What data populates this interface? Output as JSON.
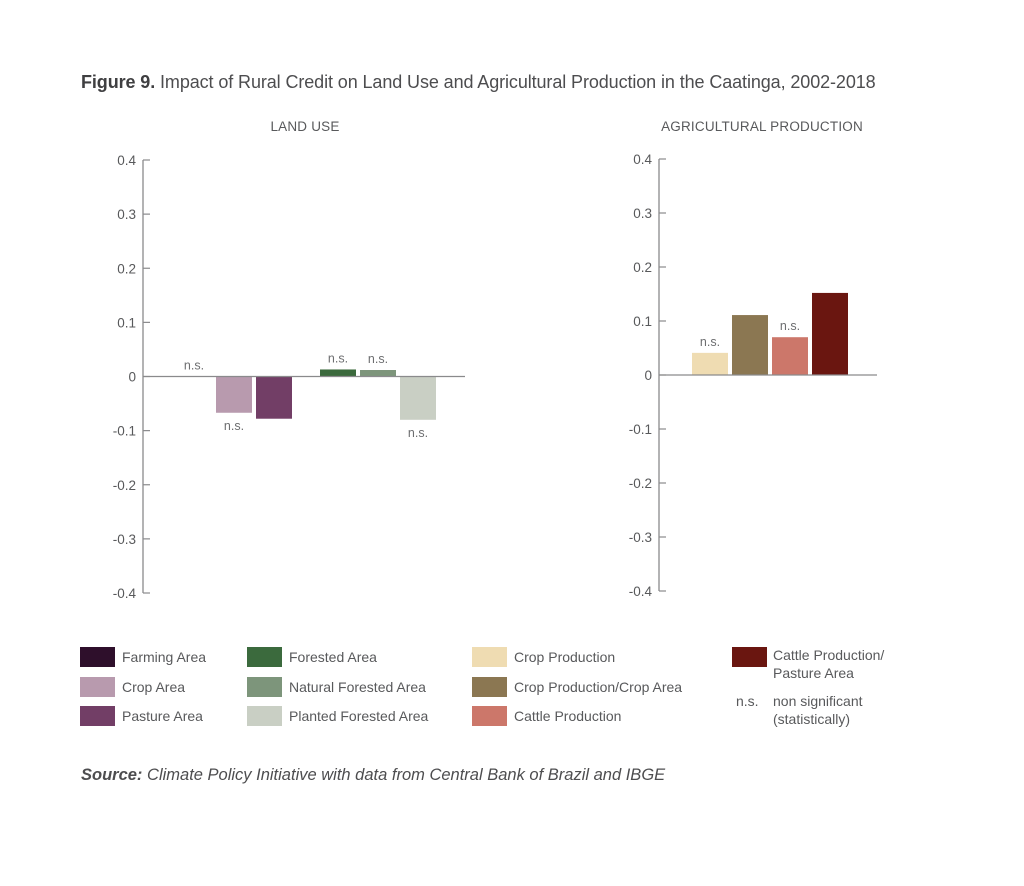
{
  "figure": {
    "label": "Figure 9.",
    "title": " Impact of Rural Credit on Land Use and Agricultural Production in the Caatinga, 2002-2018"
  },
  "source": {
    "label": "Source:",
    "text": " Climate Policy Initiative with data from Central Bank of Brazil and IBGE"
  },
  "ns_marker": "n.s.",
  "chart_data": [
    {
      "type": "bar",
      "title": "LAND USE",
      "ylim": [
        -0.4,
        0.4
      ],
      "yticks": [
        0.4,
        0.3,
        0.2,
        0.1,
        0,
        -0.1,
        -0.2,
        -0.3,
        -0.4
      ],
      "ytick_labels": [
        "0.4",
        "0.3",
        "0.2",
        "0.1",
        "0",
        "-0.1",
        "-0.2",
        "-0.3",
        "-0.4"
      ],
      "grid": false,
      "categories": [
        "Farming Area",
        "Crop Area",
        "Pasture Area",
        "Forested Area",
        "Natural Forested Area",
        "Planted Forested Area"
      ],
      "groups": [
        [
          0,
          1,
          2
        ],
        [
          3,
          4,
          5
        ]
      ],
      "values": [
        0.0,
        -0.067,
        -0.078,
        0.013,
        0.012,
        -0.08
      ],
      "significant": [
        false,
        false,
        true,
        false,
        false,
        false
      ],
      "colors": [
        "#2e0f2b",
        "#b89aae",
        "#723e66",
        "#3b6a3d",
        "#7d957b",
        "#c9cfc4"
      ]
    },
    {
      "type": "bar",
      "title": "AGRICULTURAL PRODUCTION",
      "ylim": [
        -0.4,
        0.4
      ],
      "yticks": [
        0.4,
        0.3,
        0.2,
        0.1,
        0,
        -0.1,
        -0.2,
        -0.3,
        -0.4
      ],
      "ytick_labels": [
        "0.4",
        "0.3",
        "0.2",
        "0.1",
        "0",
        "-0.1",
        "-0.2",
        "-0.3",
        "-0.4"
      ],
      "grid": false,
      "categories": [
        "Crop Production",
        "Crop Production/Crop Area",
        "Cattle Production",
        "Cattle Production/Pasture Area"
      ],
      "groups": [
        [
          0,
          1,
          2,
          3
        ]
      ],
      "values": [
        0.041,
        0.111,
        0.07,
        0.152
      ],
      "significant": [
        false,
        true,
        false,
        true
      ],
      "colors": [
        "#efdcb2",
        "#8b7752",
        "#cc776a",
        "#6a1610"
      ]
    }
  ],
  "legend": {
    "placement": "bottom",
    "columns": [
      [
        {
          "label": "Farming Area",
          "color": "#2e0f2b"
        },
        {
          "label": "Crop Area",
          "color": "#b89aae"
        },
        {
          "label": "Pasture Area",
          "color": "#723e66"
        }
      ],
      [
        {
          "label": "Forested Area",
          "color": "#3b6a3d"
        },
        {
          "label": "Natural Forested Area",
          "color": "#7d957b"
        },
        {
          "label": "Planted Forested Area",
          "color": "#c9cfc4"
        }
      ],
      [
        {
          "label": "Crop Production",
          "color": "#efdcb2"
        },
        {
          "label": "Crop Production/Crop Area",
          "color": "#8b7752"
        },
        {
          "label": "Cattle Production",
          "color": "#cc776a"
        }
      ]
    ],
    "last_column": {
      "swatch_item": {
        "label_line1": "Cattle Production/",
        "label_line2": "Pasture Area",
        "color": "#6a1610"
      },
      "ns_note": {
        "marker": "n.s.",
        "line1": "non significant",
        "line2": "(statistically)"
      }
    }
  }
}
